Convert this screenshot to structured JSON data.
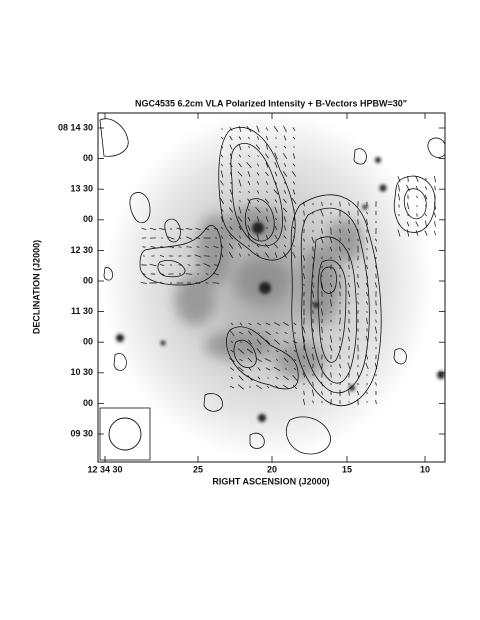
{
  "figure": {
    "title": "NGC4535  6.2cm  VLA  Polarized Intensity + B-Vectors  HPBW=30\"",
    "x_label": "RIGHT ASCENSION (J2000)",
    "y_label": "DECLINATION (J2000)",
    "x_tick_labels": [
      "12 34 30",
      "25",
      "20",
      "15",
      "10"
    ],
    "y_tick_labels": [
      "08 14 30",
      "00",
      "13 30",
      "00",
      "12 30",
      "00",
      "11 30",
      "00",
      "10 30",
      "00",
      "09 30"
    ]
  }
}
